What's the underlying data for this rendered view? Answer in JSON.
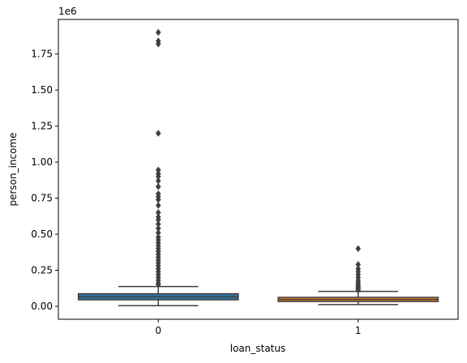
{
  "chart_data": {
    "type": "box",
    "xlabel": "loan_status",
    "ylabel": "person_income",
    "offset_label": "1e6",
    "categories": [
      "0",
      "1"
    ],
    "colors": [
      "#3274a1",
      "#e1812c"
    ],
    "ylim": [
      -0.09,
      1.99
    ],
    "yticks": [
      0.0,
      0.25,
      0.5,
      0.75,
      1.0,
      1.25,
      1.5,
      1.75
    ],
    "ytick_labels": [
      "0.00",
      "0.25",
      "0.50",
      "0.75",
      "1.00",
      "1.25",
      "1.50",
      "1.75"
    ],
    "boxes": [
      {
        "category": "0",
        "whisker_low": 0.004,
        "q1": 0.045,
        "median": 0.065,
        "q3": 0.087,
        "whisker_high": 0.137,
        "outliers": [
          1.9,
          1.84,
          1.82,
          1.2,
          0.945,
          0.92,
          0.9,
          0.87,
          0.83,
          0.78,
          0.76,
          0.74,
          0.7,
          0.65,
          0.62,
          0.6,
          0.57,
          0.54,
          0.51,
          0.48,
          0.46,
          0.44,
          0.42,
          0.4,
          0.38,
          0.36,
          0.34,
          0.32,
          0.3,
          0.28,
          0.26,
          0.24,
          0.22,
          0.2,
          0.18,
          0.16,
          0.15
        ]
      },
      {
        "category": "1",
        "whisker_low": 0.012,
        "q1": 0.033,
        "median": 0.047,
        "q3": 0.062,
        "whisker_high": 0.103,
        "outliers": [
          0.4,
          0.29,
          0.26,
          0.24,
          0.22,
          0.2,
          0.18,
          0.165,
          0.15,
          0.14,
          0.13,
          0.12,
          0.11
        ]
      }
    ]
  }
}
